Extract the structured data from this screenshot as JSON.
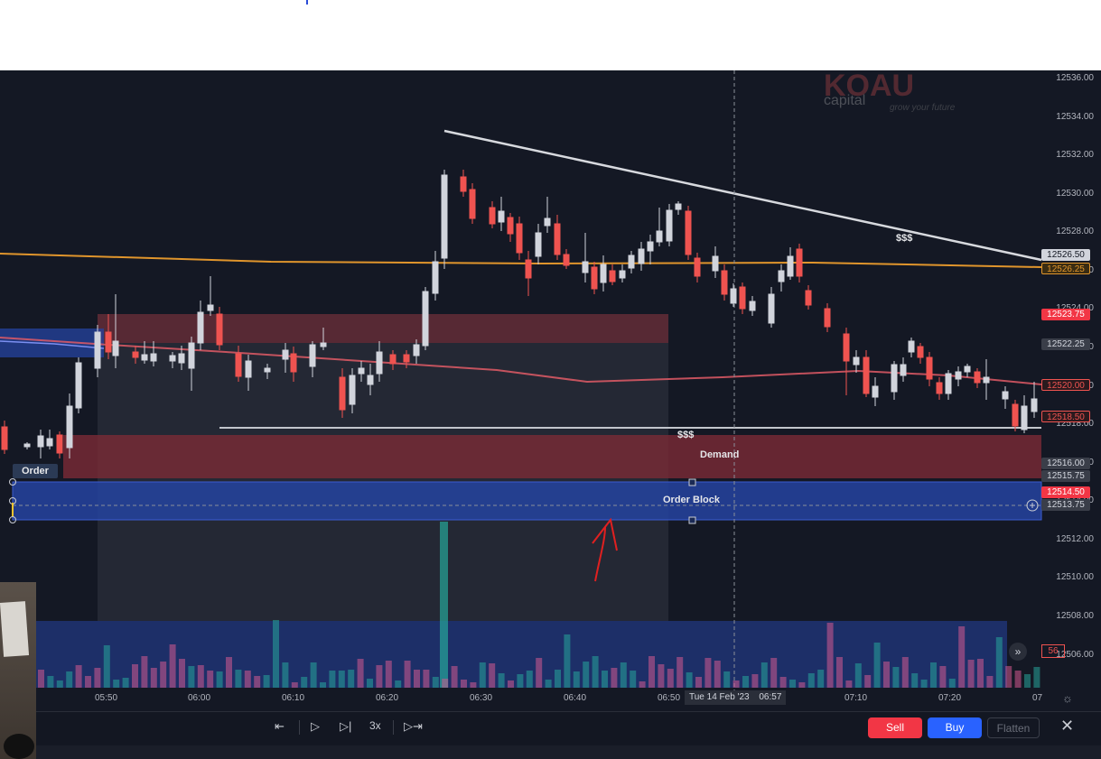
{
  "colors": {
    "bg": "#141824",
    "bull": "#d1d4dc",
    "bear": "#ef5350",
    "accent_sell": "#f23645",
    "accent_buy": "#2962ff",
    "demand_zone": "#7a2a36",
    "order_block_zone": "#2443a0",
    "orange_line": "#e0952c",
    "red_ma": "#e05a66"
  },
  "price_axis": {
    "labels": [
      "12536.00",
      "12534.00",
      "12532.00",
      "12530.00",
      "12528.00",
      "12526.00",
      "12524.00",
      "12522.00",
      "12520.00",
      "12518.00",
      "12516.00",
      "12514.00",
      "12512.00",
      "12510.00",
      "12508.00",
      "12506.00"
    ]
  },
  "price_tags": [
    {
      "text": "12526.50",
      "style": "light"
    },
    {
      "text": "12526.25",
      "style": "orange"
    },
    {
      "text": "12523.75",
      "style": "red"
    },
    {
      "text": "12522.25",
      "style": "grey"
    },
    {
      "text": "12520.00",
      "style": "darkred"
    },
    {
      "text": "12518.50",
      "style": "darkred"
    },
    {
      "text": "12516.00",
      "style": "grey"
    },
    {
      "text": "12515.75",
      "style": "grey"
    },
    {
      "text": "12514.50",
      "style": "red"
    },
    {
      "text": "12513.75",
      "style": "grey"
    }
  ],
  "time_axis": {
    "labels": [
      "05:50",
      "06:00",
      "06:10",
      "06:20",
      "06:30",
      "06:40",
      "06:50",
      "07:10",
      "07:20",
      "07"
    ],
    "crosshair_date": "Tue 14 Feb '23",
    "crosshair_time": "06:57"
  },
  "annotations": {
    "dollars_top": "$$$",
    "dollars_low": "$$$",
    "demand": "Demand",
    "order_block": "Order Block",
    "order_tag": "Order"
  },
  "volume_badge": "56",
  "logo": {
    "text": "capital",
    "tagline": "grow your future"
  },
  "playback": {
    "speed": "3x"
  },
  "buttons": {
    "sell": "Sell",
    "buy": "Buy",
    "flatten": "Flatten"
  }
}
